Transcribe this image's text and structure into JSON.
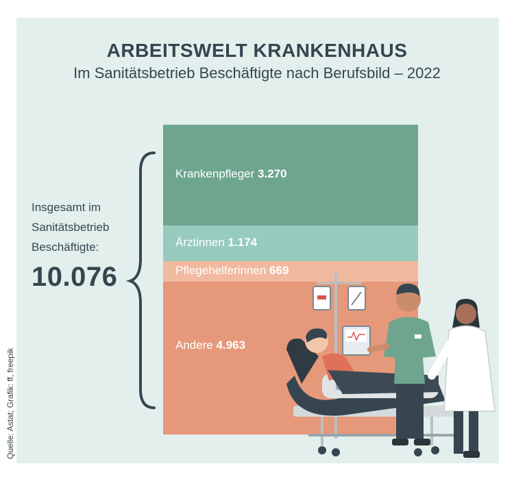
{
  "title": "ARBEITSWELT KRANKENHAUS",
  "subtitle": "Im Sanitätsbetrieb Beschäftigte nach Berufsbild – 2022",
  "total": {
    "label_lines": [
      "Insgesamt im",
      "Sanitätsbetrieb",
      "Beschäftigte:"
    ],
    "value": "10.076"
  },
  "source": "Quelle: Astat; Grafik: ff, freepik",
  "colors": {
    "background": "#e3efec",
    "text": "#36454f",
    "krankenpfleger": "#6da58f",
    "aerztinnen": "#96cbbd",
    "pflegehelferinnen": "#f1b9a0",
    "andere": "#e6987a"
  },
  "chart_data": {
    "type": "bar",
    "orientation": "stacked-vertical-single",
    "categories": [
      "Krankenpfleger",
      "Ärztinnen",
      "Pflegehelferinnen",
      "Andere"
    ],
    "values": [
      3270,
      1174,
      669,
      4963
    ],
    "value_labels": [
      "3.270",
      "1.174",
      "669",
      "4.963"
    ],
    "total": 10076,
    "title": "ARBEITSWELT KRANKENHAUS",
    "subtitle": "Im Sanitätsbetrieb Beschäftigte nach Berufsbild – 2022",
    "xlabel": "",
    "ylabel": ""
  }
}
